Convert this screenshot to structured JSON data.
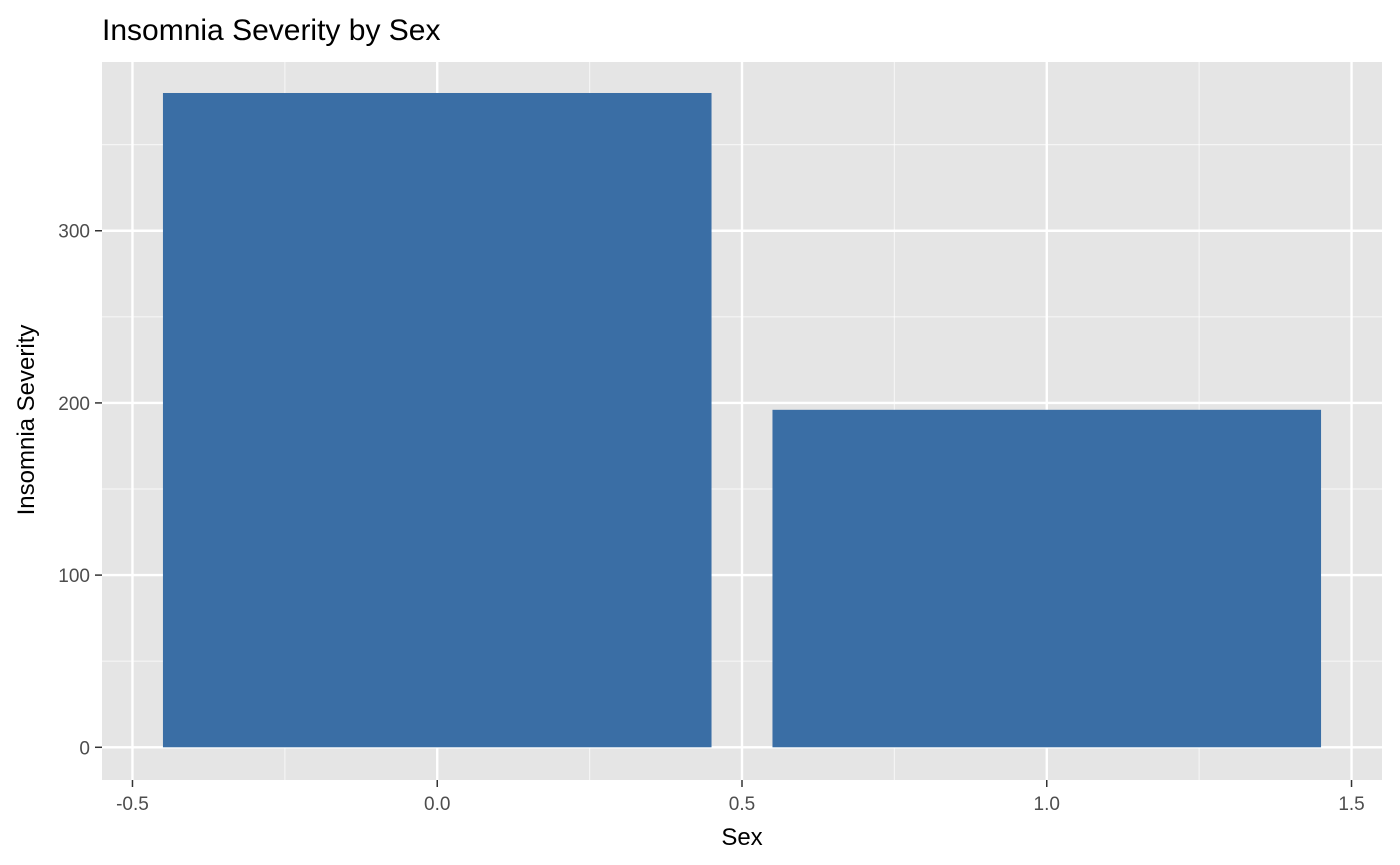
{
  "chart_data": {
    "type": "bar",
    "title": "Insomnia Severity by Sex",
    "xlabel": "Sex",
    "ylabel": "Insomnia Severity",
    "x": [
      0,
      1
    ],
    "values": [
      380,
      196
    ],
    "bar_width": 0.9,
    "xlim": [
      -0.55,
      1.55
    ],
    "ylim": [
      -19,
      398
    ],
    "xticks": [
      -0.5,
      0.0,
      0.5,
      1.0,
      1.5
    ],
    "xtick_labels": [
      "-0.5",
      "0.0",
      "0.5",
      "1.0",
      "1.5"
    ],
    "yticks": [
      0,
      100,
      200,
      300
    ],
    "ytick_labels": [
      "0",
      "100",
      "200",
      "300"
    ],
    "grid": true,
    "legend": "none",
    "colors": {
      "bar": "#3A6EA5",
      "panel": "#E5E5E5",
      "grid_major": "#FFFFFF",
      "tick_text": "#4D4D4D",
      "tick_mark": "#333333"
    }
  }
}
